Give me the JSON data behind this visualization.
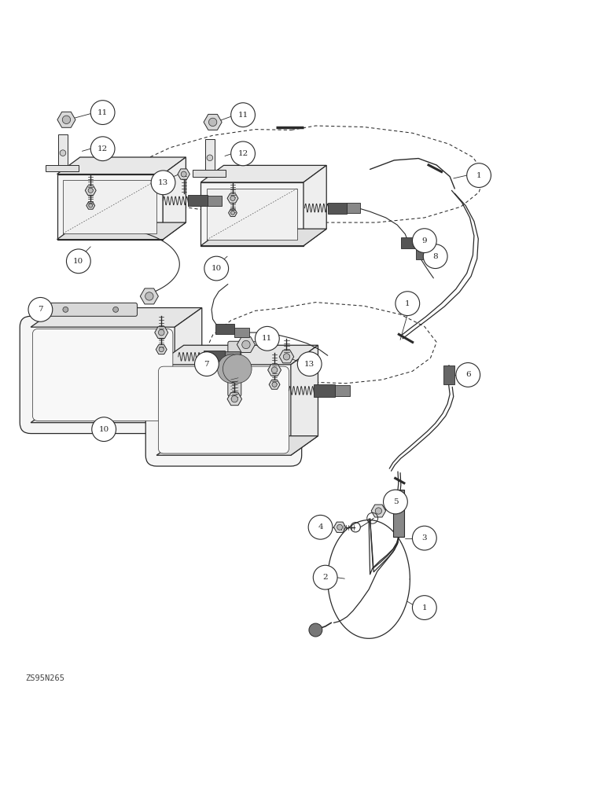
{
  "watermark": "ZS95N265",
  "bg_color": "#ffffff",
  "line_color": "#2a2a2a",
  "figure_width": 7.72,
  "figure_height": 10.0,
  "dpi": 100,
  "upper_harness_dashed": {
    "points_x": [
      0.48,
      0.52,
      0.6,
      0.68,
      0.74,
      0.78,
      0.8,
      0.79,
      0.76,
      0.7,
      0.62,
      0.54,
      0.46,
      0.38,
      0.3,
      0.24,
      0.2,
      0.19,
      0.22,
      0.28,
      0.35,
      0.42,
      0.48
    ],
    "points_y": [
      0.935,
      0.942,
      0.94,
      0.93,
      0.912,
      0.89,
      0.862,
      0.832,
      0.808,
      0.79,
      0.782,
      0.782,
      0.786,
      0.796,
      0.808,
      0.822,
      0.838,
      0.858,
      0.878,
      0.906,
      0.926,
      0.936,
      0.935
    ]
  },
  "lower_harness_dashed": {
    "points_x": [
      0.46,
      0.52,
      0.6,
      0.66,
      0.7,
      0.72,
      0.71,
      0.68,
      0.63,
      0.57,
      0.51,
      0.45,
      0.4,
      0.36,
      0.34,
      0.35,
      0.38,
      0.42,
      0.46
    ],
    "points_y": [
      0.64,
      0.65,
      0.644,
      0.63,
      0.61,
      0.584,
      0.558,
      0.536,
      0.522,
      0.516,
      0.518,
      0.526,
      0.538,
      0.554,
      0.574,
      0.596,
      0.62,
      0.636,
      0.64
    ]
  }
}
